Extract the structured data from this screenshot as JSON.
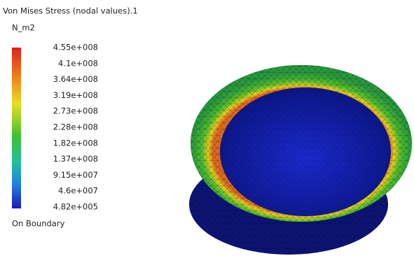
{
  "title": "Von Mises Stress (nodal values).1",
  "unit": "N_m2",
  "legend": {
    "labels": [
      "4.55e+008",
      "4.1e+008",
      "3.64e+008",
      "3.19e+008",
      "2.73e+008",
      "2.28e+008",
      "1.82e+008",
      "1.37e+008",
      "9.15e+007",
      "4.6e+007",
      "4.82e+005"
    ]
  },
  "footer": "On Boundary"
}
